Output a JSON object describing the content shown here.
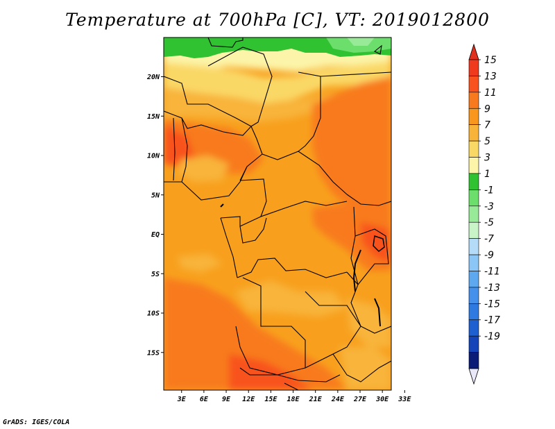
{
  "title": "Temperature at 700hPa [C], VT: 2019012800",
  "credit": "GrADS: IGES/COLA",
  "map": {
    "lat_ticks": [
      {
        "label": "20N",
        "lat": 20
      },
      {
        "label": "15N",
        "lat": 15
      },
      {
        "label": "10N",
        "lat": 10
      },
      {
        "label": "5N",
        "lat": 5
      },
      {
        "label": "EQ",
        "lat": 0
      },
      {
        "label": "5S",
        "lat": -5
      },
      {
        "label": "10S",
        "lat": -10
      },
      {
        "label": "15S",
        "lat": -15
      }
    ],
    "lon_ticks": [
      {
        "label": "3E",
        "lon": 3
      },
      {
        "label": "6E",
        "lon": 6
      },
      {
        "label": "9E",
        "lon": 9
      },
      {
        "label": "12E",
        "lon": 12
      },
      {
        "label": "15E",
        "lon": 15
      },
      {
        "label": "18E",
        "lon": 18
      },
      {
        "label": "21E",
        "lon": 21
      },
      {
        "label": "24E",
        "lon": 24
      },
      {
        "label": "27E",
        "lon": 27
      },
      {
        "label": "30E",
        "lon": 30
      },
      {
        "label": "33E",
        "lon": 33
      }
    ]
  },
  "colorbar": {
    "labels": [
      "15",
      "13",
      "11",
      "9",
      "7",
      "5",
      "3",
      "1",
      "-1",
      "-3",
      "-5",
      "-7",
      "-9",
      "-11",
      "-13",
      "-15",
      "-17",
      "-19"
    ],
    "colors": [
      "#f03a1e",
      "#f8521e",
      "#f87a1e",
      "#f8961e",
      "#f8b43a",
      "#fad866",
      "#fcf4a8",
      "#30c230",
      "#6cde6c",
      "#98ea98",
      "#c8f4c8",
      "#b4dcf8",
      "#8cc6f6",
      "#5ea8f0",
      "#4490ea",
      "#2f7ae0",
      "#1e60d0",
      "#1444b8",
      "#0a1c78"
    ],
    "top_cap_color": "#e0301e",
    "bottom_cap_color": "#e8e8f8"
  }
}
